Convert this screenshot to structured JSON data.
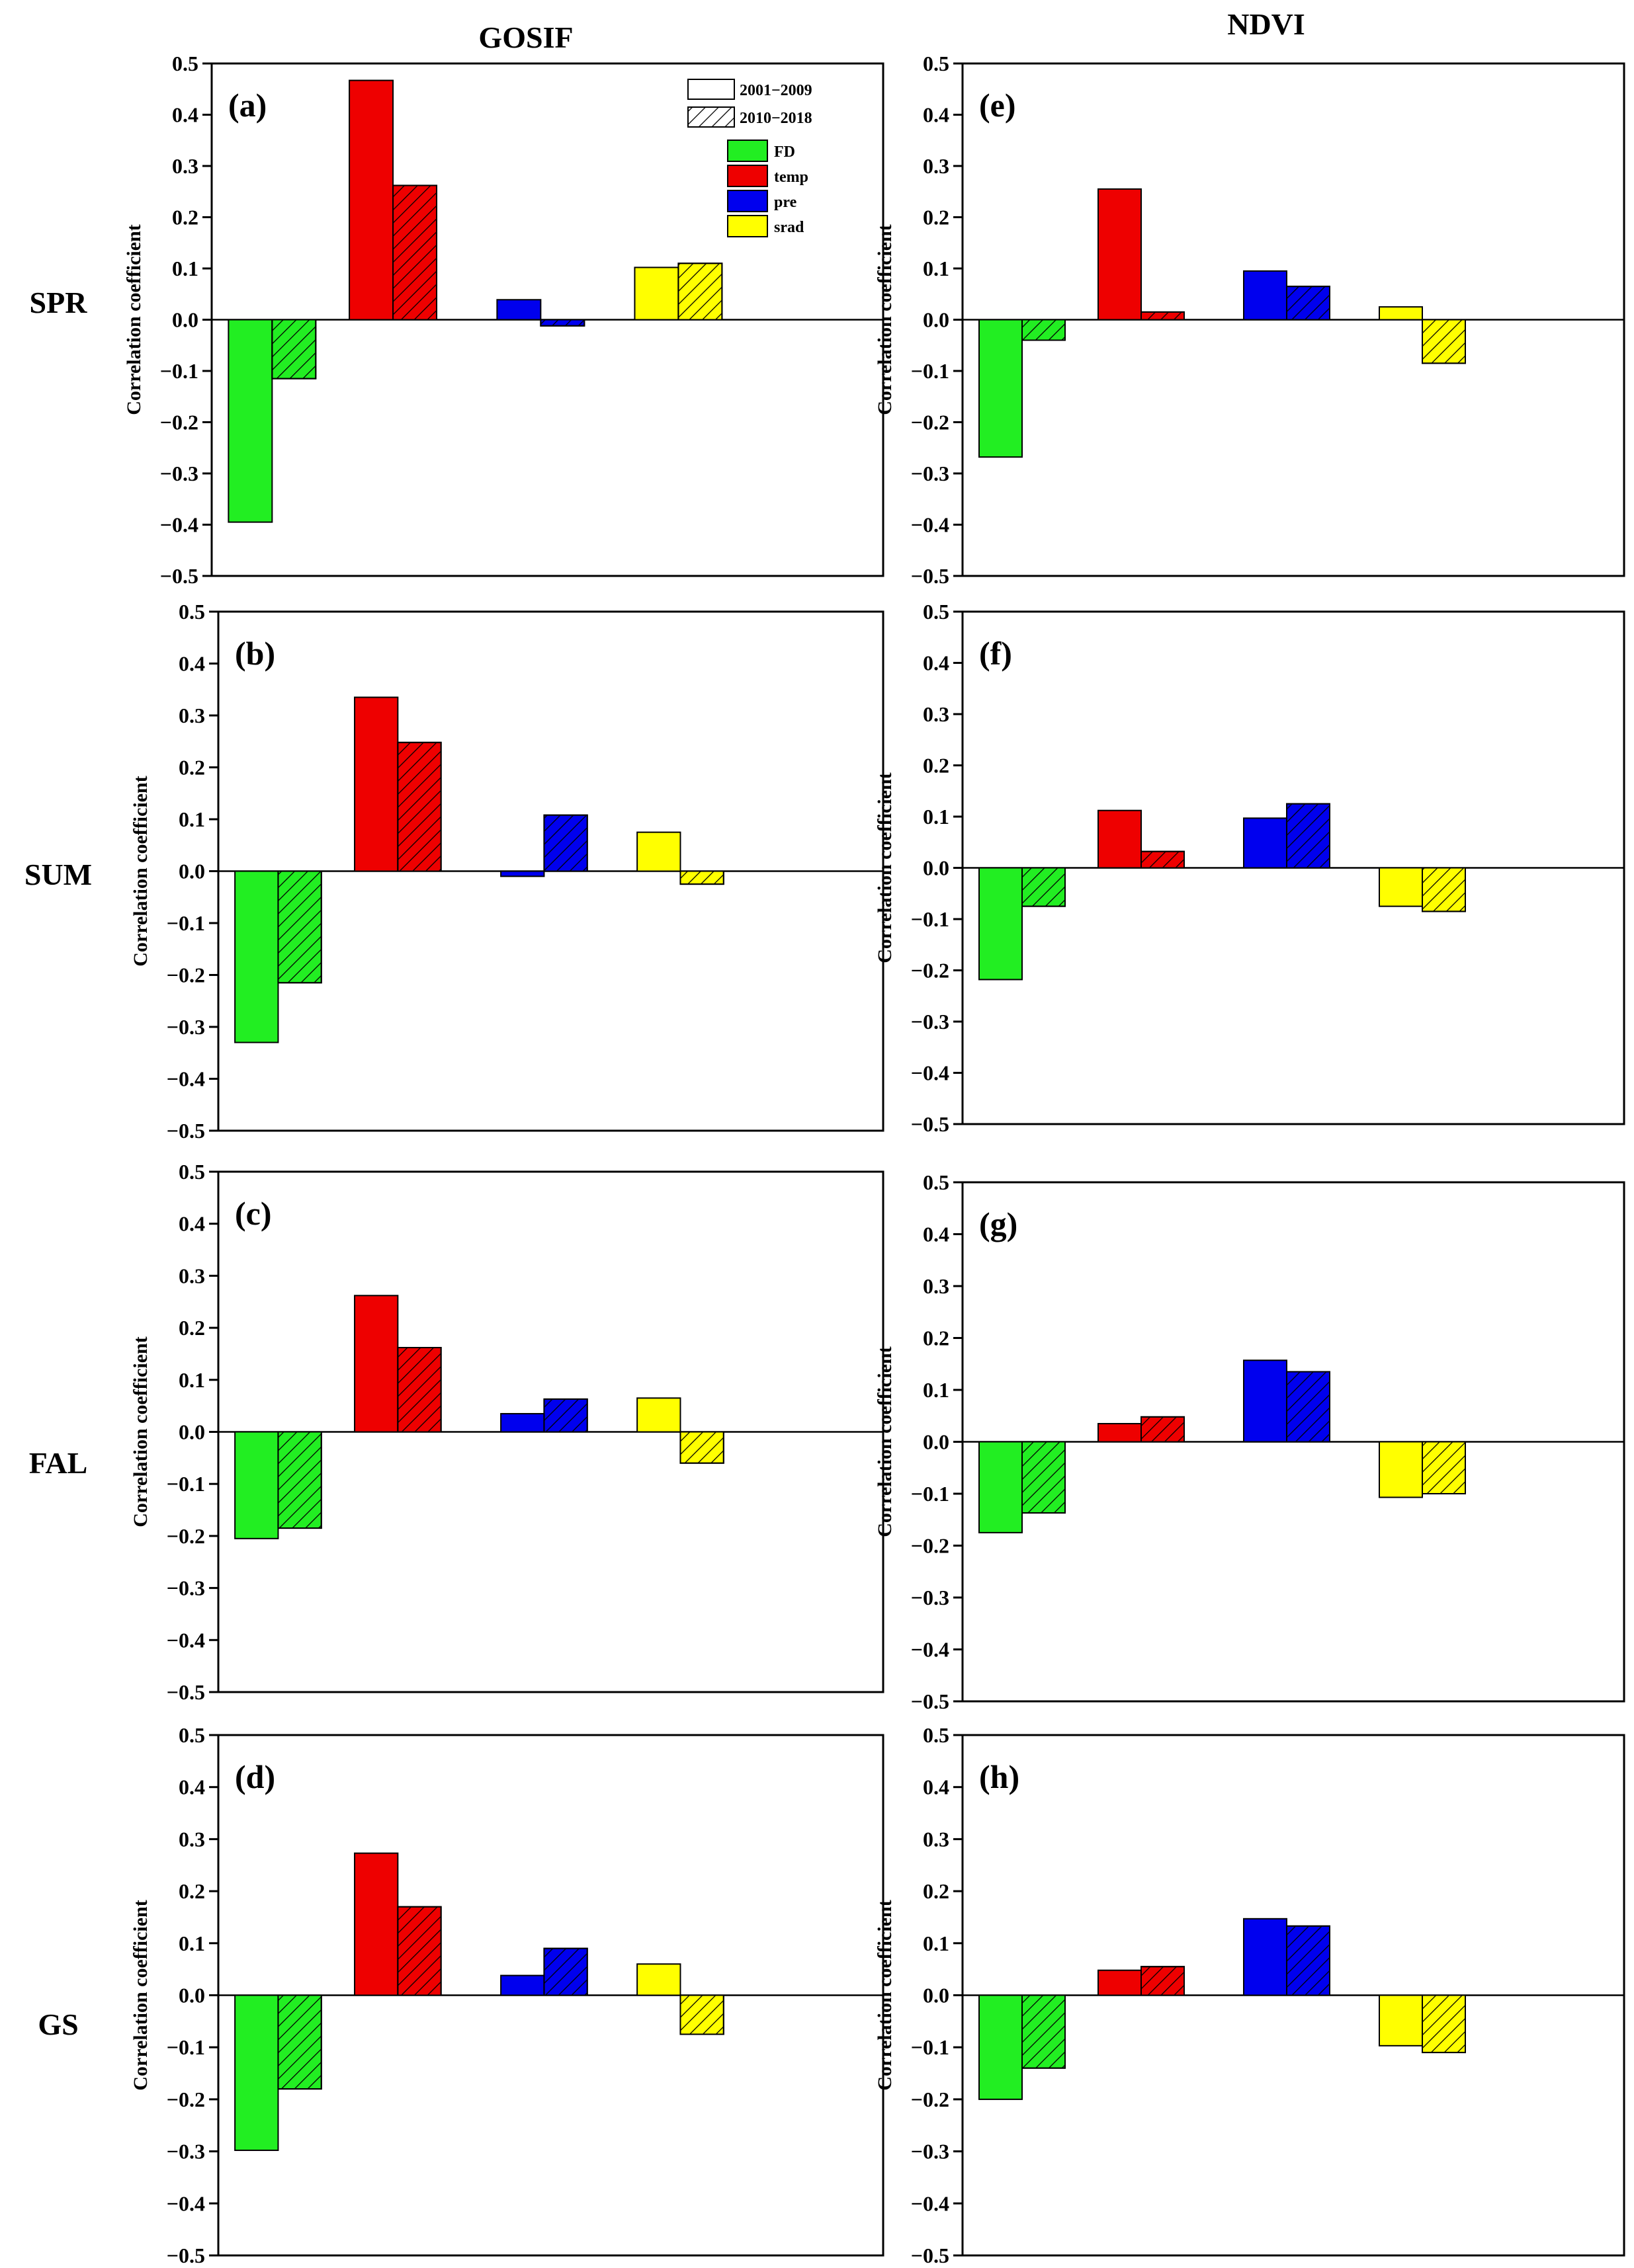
{
  "figure": {
    "column_titles": [
      "GOSIF",
      "NDVI"
    ],
    "row_labels": [
      "SPR",
      "SUM",
      "FAL",
      "GS"
    ]
  },
  "legend": {
    "periods": [
      {
        "label": "2001−2009",
        "pattern": "solid"
      },
      {
        "label": "2010−2018",
        "pattern": "hatched"
      }
    ],
    "variables": [
      {
        "label": "FD",
        "color": "#22ee22"
      },
      {
        "label": "temp",
        "color": "#ee0000"
      },
      {
        "label": "pre",
        "color": "#0000ee"
      },
      {
        "label": "srad",
        "color": "#ffff00"
      }
    ]
  },
  "chart_data": [
    {
      "type": "bar",
      "panel": "(a)",
      "index": "GOSIF",
      "season": "SPR",
      "categories": [
        "FD",
        "temp",
        "pre",
        "srad"
      ],
      "series": [
        {
          "name": "2001−2009",
          "values": [
            -0.395,
            0.467,
            0.039,
            0.102
          ]
        },
        {
          "name": "2010−2018",
          "values": [
            -0.115,
            0.262,
            -0.012,
            0.11
          ]
        }
      ],
      "ylabel": "Correlation coefficient",
      "ylim": [
        -0.5,
        0.5
      ],
      "yticks": [
        "−0.5",
        "−0.4",
        "−0.3",
        "−0.2",
        "−0.1",
        "0.0",
        "0.1",
        "0.2",
        "0.3",
        "0.4",
        "0.5"
      ]
    },
    {
      "type": "bar",
      "panel": "(b)",
      "index": "GOSIF",
      "season": "SUM",
      "categories": [
        "FD",
        "temp",
        "pre",
        "srad"
      ],
      "series": [
        {
          "name": "2001−2009",
          "values": [
            -0.33,
            0.335,
            -0.01,
            0.075
          ]
        },
        {
          "name": "2010−2018",
          "values": [
            -0.215,
            0.248,
            0.108,
            -0.025
          ]
        }
      ],
      "ylabel": "Correlation coefficient",
      "ylim": [
        -0.5,
        0.5
      ],
      "yticks": [
        "−0.5",
        "−0.4",
        "−0.3",
        "−0.2",
        "−0.1",
        "0.0",
        "0.1",
        "0.2",
        "0.3",
        "0.4",
        "0.5"
      ]
    },
    {
      "type": "bar",
      "panel": "(c)",
      "index": "GOSIF",
      "season": "FAL",
      "categories": [
        "FD",
        "temp",
        "pre",
        "srad"
      ],
      "series": [
        {
          "name": "2001−2009",
          "values": [
            -0.205,
            0.262,
            0.035,
            0.065
          ]
        },
        {
          "name": "2010−2018",
          "values": [
            -0.185,
            0.162,
            0.063,
            -0.06
          ]
        }
      ],
      "ylabel": "Correlation coefficient",
      "ylim": [
        -0.5,
        0.5
      ],
      "yticks": [
        "−0.5",
        "−0.4",
        "−0.3",
        "−0.2",
        "−0.1",
        "0.0",
        "0.1",
        "0.2",
        "0.3",
        "0.4",
        "0.5"
      ]
    },
    {
      "type": "bar",
      "panel": "(d)",
      "index": "GOSIF",
      "season": "GS",
      "categories": [
        "FD",
        "temp",
        "pre",
        "srad"
      ],
      "series": [
        {
          "name": "2001−2009",
          "values": [
            -0.298,
            0.273,
            0.038,
            0.06
          ]
        },
        {
          "name": "2010−2018",
          "values": [
            -0.18,
            0.17,
            0.09,
            -0.075
          ]
        }
      ],
      "ylabel": "Correlation coefficient",
      "ylim": [
        -0.5,
        0.5
      ],
      "yticks": [
        "−0.5",
        "−0.4",
        "−0.3",
        "−0.2",
        "−0.1",
        "0.0",
        "0.1",
        "0.2",
        "0.3",
        "0.4",
        "0.5"
      ]
    },
    {
      "type": "bar",
      "panel": "(e)",
      "index": "NDVI",
      "season": "SPR",
      "categories": [
        "FD",
        "temp",
        "pre",
        "srad"
      ],
      "series": [
        {
          "name": "2001−2009",
          "values": [
            -0.268,
            0.255,
            0.095,
            0.025
          ]
        },
        {
          "name": "2010−2018",
          "values": [
            -0.04,
            0.015,
            0.065,
            -0.085
          ]
        }
      ],
      "ylabel": "Correlation coefficient",
      "ylim": [
        -0.5,
        0.5
      ],
      "yticks": [
        "−0.5",
        "−0.4",
        "−0.3",
        "−0.2",
        "−0.1",
        "0.0",
        "0.1",
        "0.2",
        "0.3",
        "0.4",
        "0.5"
      ]
    },
    {
      "type": "bar",
      "panel": "(f)",
      "index": "NDVI",
      "season": "SUM",
      "categories": [
        "FD",
        "temp",
        "pre",
        "srad"
      ],
      "series": [
        {
          "name": "2001−2009",
          "values": [
            -0.218,
            0.112,
            0.097,
            -0.075
          ]
        },
        {
          "name": "2010−2018",
          "values": [
            -0.075,
            0.032,
            0.125,
            -0.085
          ]
        }
      ],
      "ylabel": "Correlation coefficient",
      "ylim": [
        -0.5,
        0.5
      ],
      "yticks": [
        "−0.5",
        "−0.4",
        "−0.3",
        "−0.2",
        "−0.1",
        "0.0",
        "0.1",
        "0.2",
        "0.3",
        "0.4",
        "0.5"
      ]
    },
    {
      "type": "bar",
      "panel": "(g)",
      "index": "NDVI",
      "season": "FAL",
      "categories": [
        "FD",
        "temp",
        "pre",
        "srad"
      ],
      "series": [
        {
          "name": "2001−2009",
          "values": [
            -0.175,
            0.035,
            0.157,
            -0.107
          ]
        },
        {
          "name": "2010−2018",
          "values": [
            -0.137,
            0.048,
            0.135,
            -0.1
          ]
        }
      ],
      "ylabel": "Correlation coefficient",
      "ylim": [
        -0.5,
        0.5
      ],
      "yticks": [
        "−0.5",
        "−0.4",
        "−0.3",
        "−0.2",
        "−0.1",
        "0.0",
        "0.1",
        "0.2",
        "0.3",
        "0.4",
        "0.5"
      ]
    },
    {
      "type": "bar",
      "panel": "(h)",
      "index": "NDVI",
      "season": "GS",
      "categories": [
        "FD",
        "temp",
        "pre",
        "srad"
      ],
      "series": [
        {
          "name": "2001−2009",
          "values": [
            -0.2,
            0.048,
            0.147,
            -0.097
          ]
        },
        {
          "name": "2010−2018",
          "values": [
            -0.14,
            0.055,
            0.133,
            -0.11
          ]
        }
      ],
      "ylabel": "Correlation coefficient",
      "ylim": [
        -0.5,
        0.5
      ],
      "yticks": [
        "−0.5",
        "−0.4",
        "−0.3",
        "−0.2",
        "−0.1",
        "0.0",
        "0.1",
        "0.2",
        "0.3",
        "0.4",
        "0.5"
      ]
    }
  ]
}
